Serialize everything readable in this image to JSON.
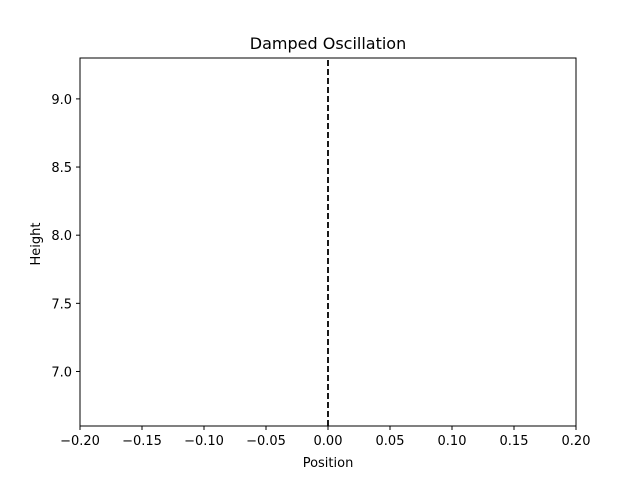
{
  "chart_data": {
    "type": "line",
    "title": "Damped Oscillation",
    "xlabel": "Position",
    "ylabel": "Height",
    "xlim": [
      -0.2,
      0.2
    ],
    "ylim": [
      6.6,
      9.3
    ],
    "xticks": [
      -0.2,
      -0.15,
      -0.1,
      -0.05,
      0.0,
      0.05,
      0.1,
      0.15,
      0.2
    ],
    "xtick_labels": [
      "−0.20",
      "−0.15",
      "−0.10",
      "−0.05",
      "0.00",
      "0.05",
      "0.10",
      "0.15",
      "0.20"
    ],
    "yticks": [
      7.0,
      7.5,
      8.0,
      8.5,
      9.0
    ],
    "ytick_labels": [
      "7.0",
      "7.5",
      "8.0",
      "8.5",
      "9.0"
    ],
    "grid": false,
    "series": [
      {
        "x": [
          0.0,
          0.0
        ],
        "y": [
          6.6,
          9.3
        ],
        "style": "dashed",
        "color": "#000000"
      }
    ]
  }
}
